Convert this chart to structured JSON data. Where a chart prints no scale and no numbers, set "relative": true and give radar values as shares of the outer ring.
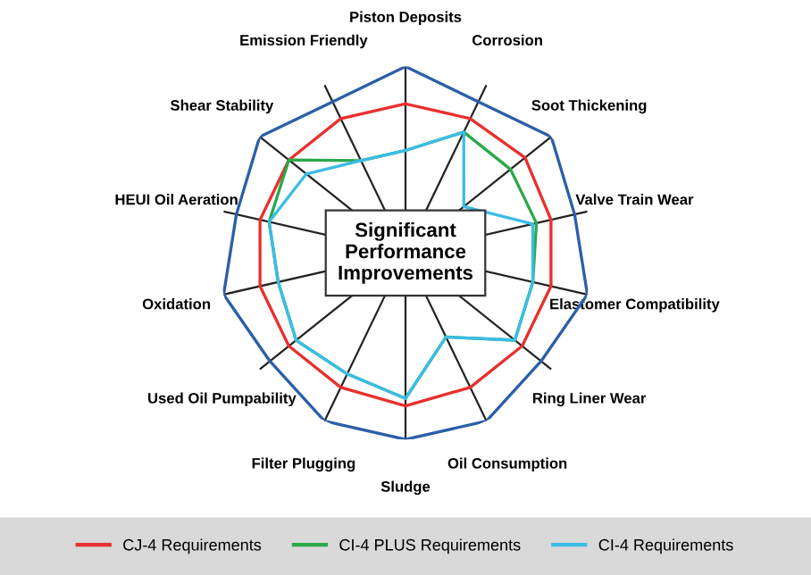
{
  "chart_data": {
    "type": "radar",
    "relative": true,
    "grid": true,
    "legend": "bottom",
    "categories": [
      "Piston Deposits",
      "Corrosion",
      "Soot Thickening",
      "Valve Train Wear",
      "Elastomer Compatibility",
      "Ring Liner Wear",
      "Oil Consumption",
      "Sludge",
      "Filter Plugging",
      "Used Oil Pumpability",
      "Oxidation",
      "HEUI Oil Aeration",
      "Shear Stability",
      "Emission Friendly"
    ],
    "annotations": [
      "Significant\nPerformance\nImprovements"
    ],
    "series": [
      {
        "color": "#2b5fa8",
        "values": [
          1,
          0.9,
          1,
          0.93,
          1,
          0.93,
          1,
          1,
          1,
          0.93,
          1,
          0.93,
          1,
          0.9
        ]
      },
      {
        "name": "CJ-4 Requirements",
        "color": "#e8302e",
        "values": [
          0.8,
          0.8,
          0.82,
          0.8,
          0.8,
          0.8,
          0.8,
          0.82,
          0.8,
          0.8,
          0.8,
          0.8,
          0.8,
          0.8
        ]
      },
      {
        "name": "CI-4 PLUS Requirements",
        "color": "#2aa84a",
        "values": [
          0.55,
          0.72,
          0.72,
          0.72,
          0.7,
          0.75,
          0.5,
          0.78,
          0.72,
          0.75,
          0.7,
          0.75,
          0.8,
          0.55
        ]
      },
      {
        "name": "CI-4 Requirements",
        "color": "#3bbde6",
        "values": [
          0.55,
          0.72,
          0.4,
          0.7,
          0.7,
          0.75,
          0.5,
          0.78,
          0.72,
          0.75,
          0.7,
          0.75,
          0.68,
          0.55
        ]
      }
    ]
  }
}
